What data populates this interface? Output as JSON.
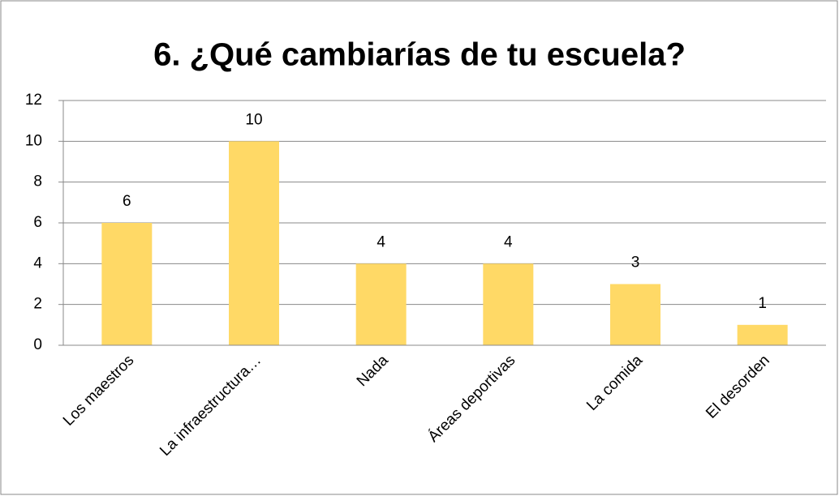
{
  "chart_data": {
    "type": "bar",
    "title": "6. ¿Qué cambiarías de tu escuela?",
    "categories": [
      "Los maestros",
      "La infraestructura…",
      "Nada",
      "Áreas deportivas",
      "La comida",
      "El desorden"
    ],
    "values": [
      6,
      10,
      4,
      4,
      3,
      1
    ],
    "color": "#ffd966",
    "ylim": [
      0,
      12
    ],
    "yticks": [
      0,
      2,
      4,
      6,
      8,
      10,
      12
    ],
    "grid": true,
    "data_labels": true
  }
}
